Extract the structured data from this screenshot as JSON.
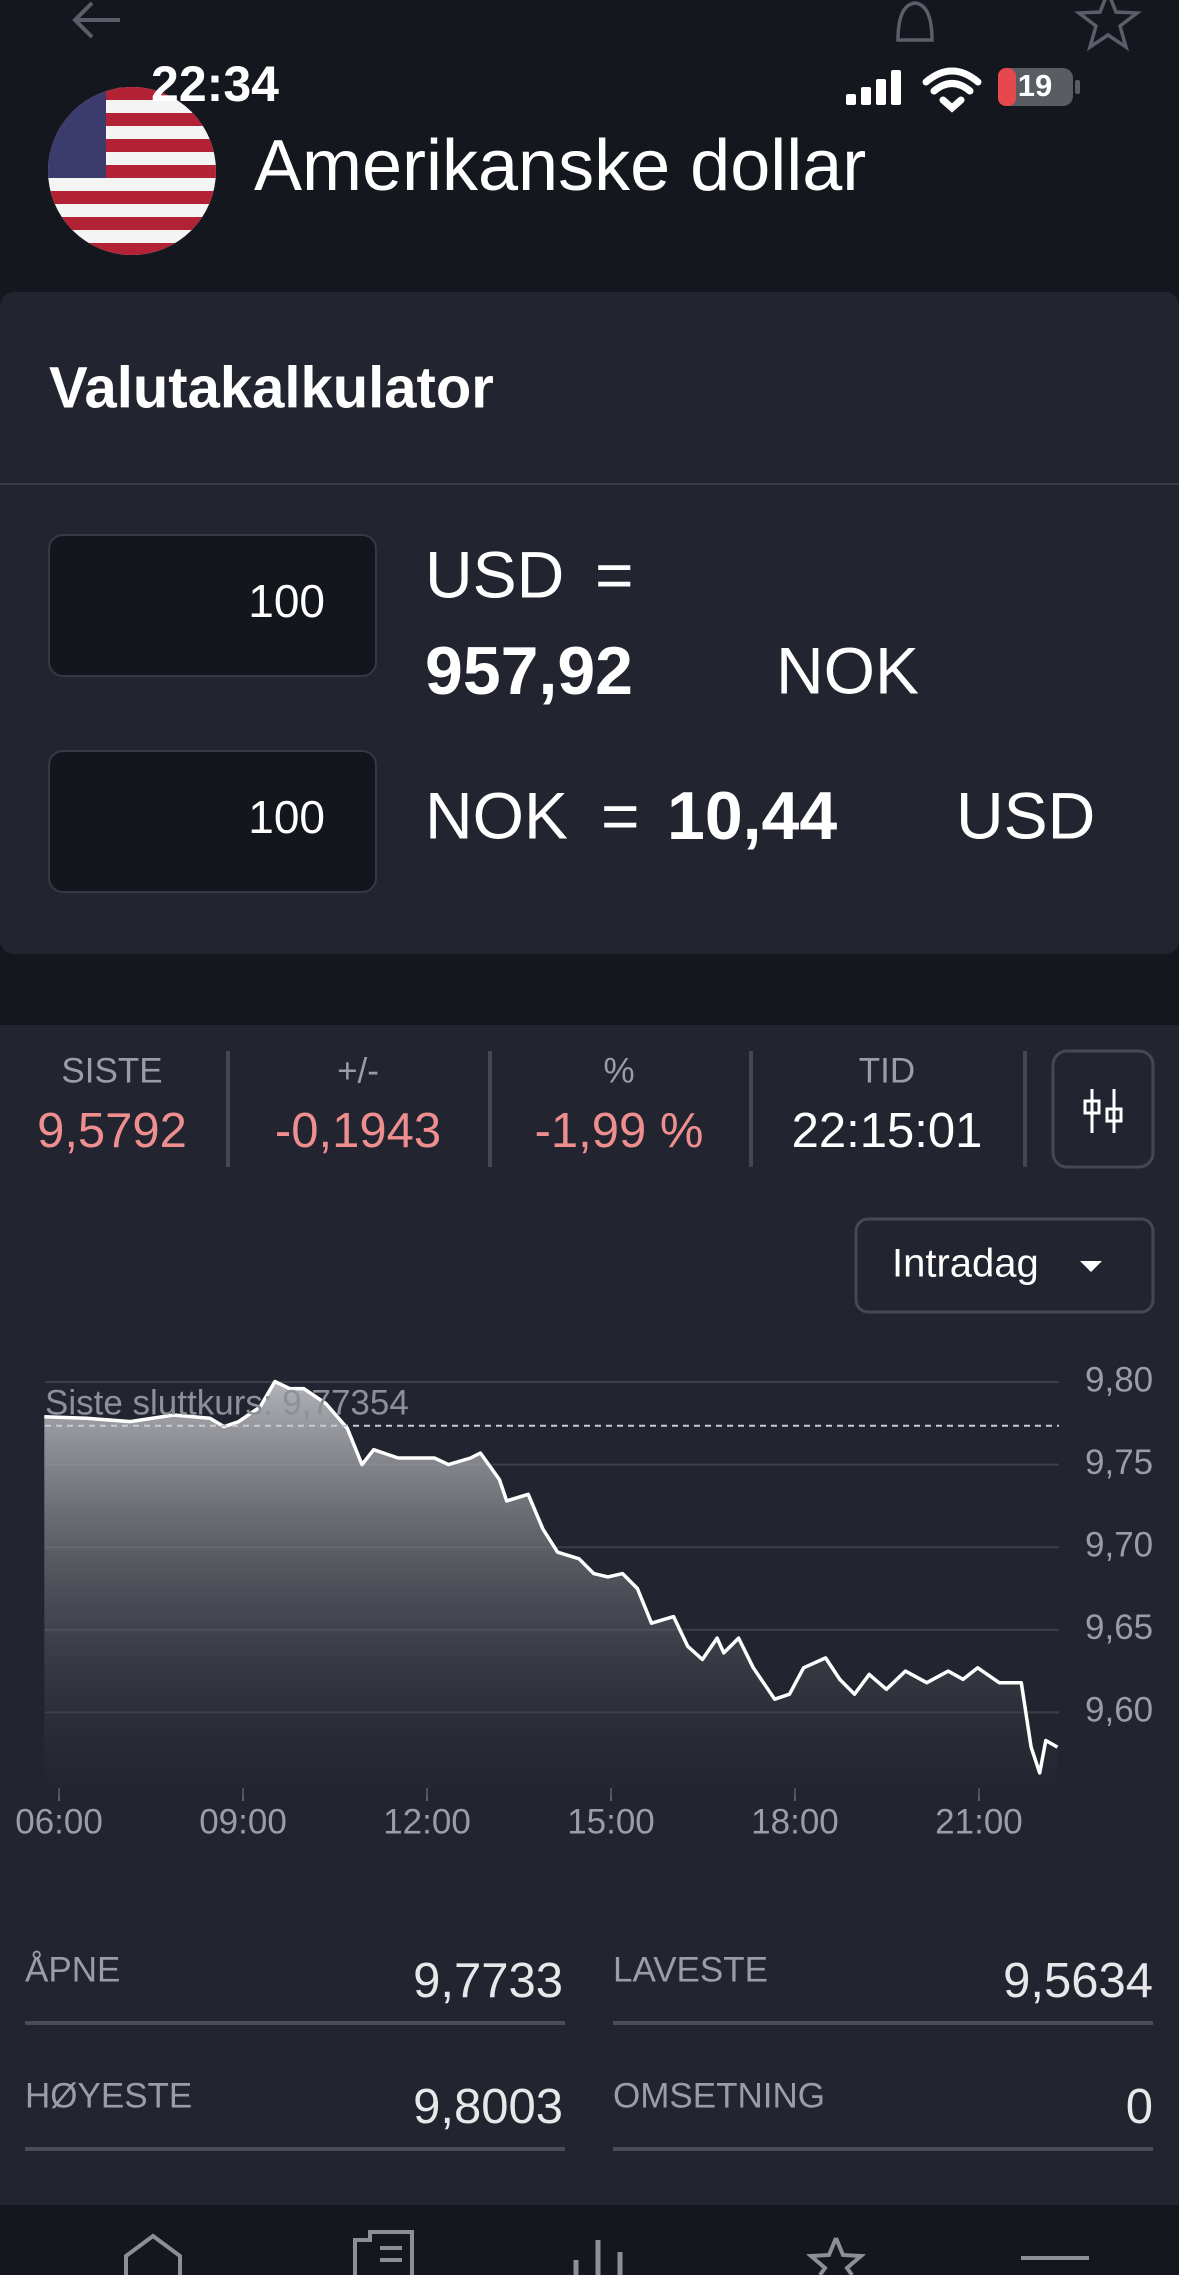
{
  "status_bar": {
    "time": "22:34",
    "battery": "19"
  },
  "header": {
    "title": "Amerikanske dollar"
  },
  "calculator": {
    "title": "Valutakalkulator",
    "equals": "=",
    "rows": [
      {
        "amount": "100",
        "from": "USD",
        "result": "957,92",
        "to": "NOK"
      },
      {
        "amount": "100",
        "from": "NOK",
        "result": "10,44",
        "to": "USD"
      }
    ]
  },
  "quote": {
    "fields": [
      {
        "label": "SISTE",
        "value": "9,5792",
        "color": "#ef8e8f"
      },
      {
        "label": "+/-",
        "value": "-0,1943",
        "color": "#ef8e8f"
      },
      {
        "label": "%",
        "value": "-1,99 %",
        "color": "#ef8e8f"
      },
      {
        "label": "TID",
        "value": "22:15:01",
        "color": "#ffffff"
      }
    ]
  },
  "range_selector": "Intradag",
  "chart_data": {
    "type": "area",
    "x": [
      5.76,
      6.45,
      7.16,
      7.87,
      8.46,
      8.69,
      8.93,
      9.28,
      9.52,
      9.76,
      9.99,
      10.35,
      10.7,
      10.94,
      11.13,
      11.53,
      12.12,
      12.35,
      12.71,
      12.87,
      13.18,
      13.3,
      13.65,
      13.89,
      14.13,
      14.48,
      14.72,
      14.95,
      15.19,
      15.43,
      15.66,
      16.02,
      16.25,
      16.49,
      16.73,
      16.84,
      17.08,
      17.32,
      17.67,
      17.91,
      18.14,
      18.5,
      18.73,
      18.97,
      19.21,
      19.49,
      19.8,
      20.15,
      20.5,
      20.74,
      20.98,
      21.33,
      21.69,
      21.85,
      21.99,
      22.09,
      22.28
    ],
    "series": [
      {
        "name": "USD/NOK",
        "color": "#ffffff",
        "values": [
          9.779,
          9.778,
          9.776,
          9.78,
          9.778,
          9.773,
          9.776,
          9.785,
          9.8003,
          9.796,
          9.796,
          9.787,
          9.772,
          9.75,
          9.759,
          9.754,
          9.754,
          9.75,
          9.754,
          9.757,
          9.741,
          9.728,
          9.732,
          9.711,
          9.697,
          9.693,
          9.684,
          9.682,
          9.684,
          9.675,
          9.654,
          9.658,
          9.64,
          9.632,
          9.645,
          9.636,
          9.645,
          9.627,
          9.608,
          9.611,
          9.627,
          9.633,
          9.62,
          9.611,
          9.623,
          9.614,
          9.625,
          9.618,
          9.625,
          9.62,
          9.627,
          9.618,
          9.618,
          9.579,
          9.5634,
          9.583,
          9.579
        ]
      }
    ],
    "xlim": [
      5.75,
      22.3
    ],
    "ylim": [
      9.55,
      9.8
    ],
    "xticks": [
      {
        "value": 6,
        "label": "06:00"
      },
      {
        "value": 9,
        "label": "09:00"
      },
      {
        "value": 12,
        "label": "12:00"
      },
      {
        "value": 15,
        "label": "15:00"
      },
      {
        "value": 18,
        "label": "18:00"
      },
      {
        "value": 21,
        "label": "21:00"
      }
    ],
    "yticks": [
      {
        "value": 9.6,
        "label": "9,60"
      },
      {
        "value": 9.65,
        "label": "9,65"
      },
      {
        "value": 9.7,
        "label": "9,70"
      },
      {
        "value": 9.75,
        "label": "9,75"
      },
      {
        "value": 9.8,
        "label": "9,80"
      }
    ],
    "grid": true,
    "reference": {
      "value": 9.77354,
      "label": "Siste sluttkurs: 9,77354"
    }
  },
  "stats": [
    {
      "label": "ÅPNE",
      "value": "9,7733"
    },
    {
      "label": "LAVESTE",
      "value": "9,5634"
    },
    {
      "label": "HØYESTE",
      "value": "9,8003"
    },
    {
      "label": "OMSETNING",
      "value": "0"
    }
  ]
}
